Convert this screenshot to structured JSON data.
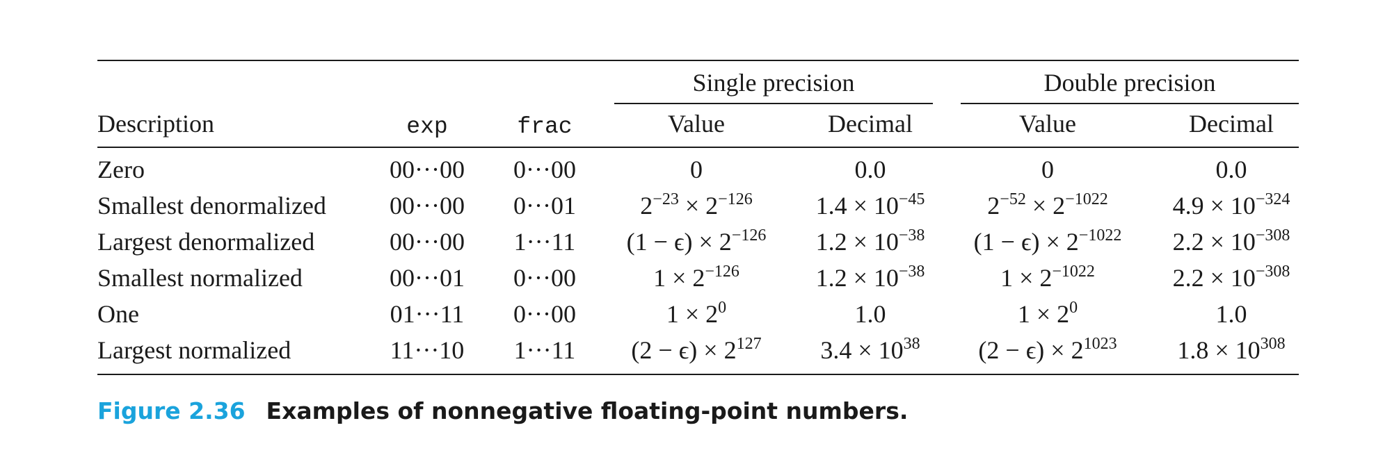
{
  "table": {
    "group_headers": {
      "single": "Single precision",
      "double": "Double precision"
    },
    "column_headers": {
      "description": "Description",
      "exp": "exp",
      "frac": "frac",
      "single_value": "Value",
      "single_decimal": "Decimal",
      "double_value": "Value",
      "double_decimal": "Decimal"
    },
    "rows": [
      {
        "description": "Zero",
        "exp": "00···00",
        "frac": "0···00",
        "single_value": {
          "base": "0",
          "exp": ""
        },
        "single_decimal": {
          "base": "0.0",
          "exp": ""
        },
        "double_value": {
          "base": "0",
          "exp": ""
        },
        "double_decimal": {
          "base": "0.0",
          "exp": ""
        }
      },
      {
        "description": "Smallest denormalized",
        "exp": "00···00",
        "frac": "0···01",
        "single_value": {
          "pre": "2",
          "pre_exp": "−23",
          "base": " × 2",
          "exp": "−126"
        },
        "single_decimal": {
          "base": "1.4 × 10",
          "exp": "−45"
        },
        "double_value": {
          "pre": "2",
          "pre_exp": "−52",
          "base": " × 2",
          "exp": "−1022"
        },
        "double_decimal": {
          "base": "4.9 × 10",
          "exp": "−324"
        }
      },
      {
        "description": "Largest denormalized",
        "exp": "00···00",
        "frac": "1···11",
        "single_value": {
          "base": "(1 − ϵ) × 2",
          "exp": "−126"
        },
        "single_decimal": {
          "base": "1.2 × 10",
          "exp": "−38"
        },
        "double_value": {
          "base": "(1 − ϵ) × 2",
          "exp": "−1022"
        },
        "double_decimal": {
          "base": "2.2 × 10",
          "exp": "−308"
        }
      },
      {
        "description": "Smallest normalized",
        "exp": "00···01",
        "frac": "0···00",
        "single_value": {
          "base": "1 × 2",
          "exp": "−126"
        },
        "single_decimal": {
          "base": "1.2 × 10",
          "exp": "−38"
        },
        "double_value": {
          "base": "1 × 2",
          "exp": "−1022"
        },
        "double_decimal": {
          "base": "2.2 × 10",
          "exp": "−308"
        }
      },
      {
        "description": "One",
        "exp": "01···11",
        "frac": "0···00",
        "single_value": {
          "base": "1 × 2",
          "exp": "0"
        },
        "single_decimal": {
          "base": "1.0",
          "exp": ""
        },
        "double_value": {
          "base": "1 × 2",
          "exp": "0"
        },
        "double_decimal": {
          "base": "1.0",
          "exp": ""
        }
      },
      {
        "description": "Largest normalized",
        "exp": "11···10",
        "frac": "1···11",
        "single_value": {
          "base": "(2 − ϵ) × 2",
          "exp": "127"
        },
        "single_decimal": {
          "base": "3.4 × 10",
          "exp": "38"
        },
        "double_value": {
          "base": "(2 − ϵ) × 2",
          "exp": "1023"
        },
        "double_decimal": {
          "base": "1.8 × 10",
          "exp": "308"
        }
      }
    ]
  },
  "caption": {
    "figure_number": "Figure 2.36",
    "title": "Examples of nonnegative floating-point numbers."
  }
}
